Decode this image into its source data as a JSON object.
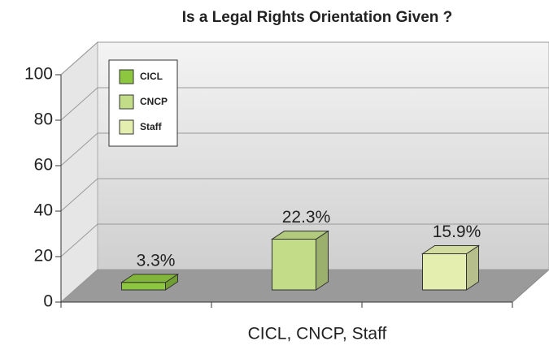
{
  "chart_data": {
    "type": "bar3d",
    "title": "Is a Legal Rights Orientation Given ?",
    "x_label": "CICL, CNCP, Staff",
    "series": [
      {
        "name": "CICL",
        "color": "#8dc63f",
        "values": [
          3.3
        ],
        "value_labels": [
          "3.3%"
        ]
      },
      {
        "name": "CNCP",
        "color": "#c2dc88",
        "values": [
          22.3
        ],
        "value_labels": [
          "22.3%"
        ]
      },
      {
        "name": "Staff",
        "color": "#e4eeae",
        "values": [
          15.9
        ],
        "value_labels": [
          "15.9%"
        ]
      }
    ],
    "ylim": [
      0,
      100
    ],
    "yticks": [
      0,
      20,
      40,
      60,
      80,
      100
    ],
    "grid": true,
    "legend": "upper left"
  }
}
